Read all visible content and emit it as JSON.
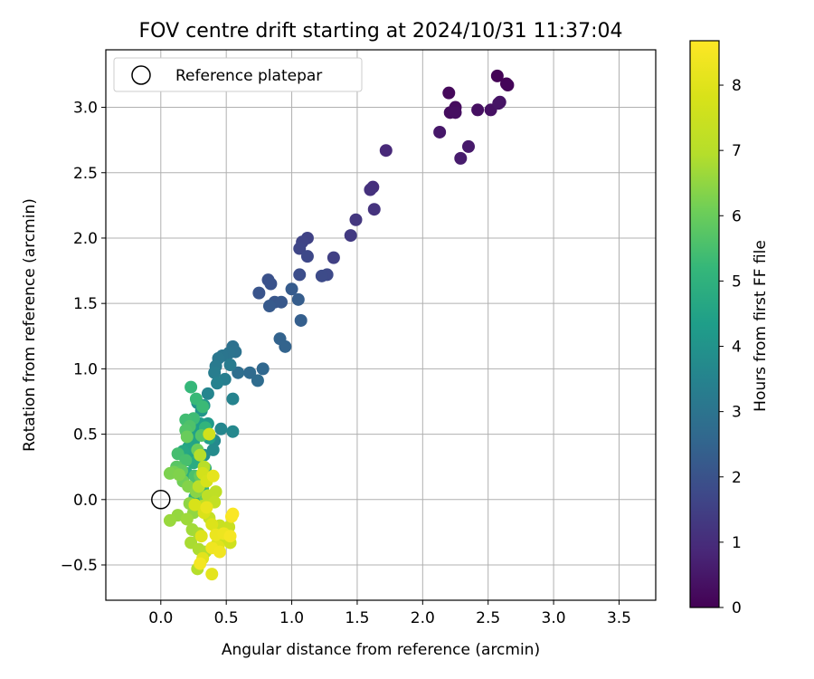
{
  "chart_data": {
    "type": "scatter",
    "title": "FOV centre drift starting at 2024/10/31 11:37:04",
    "xlabel": "Angular distance from reference (arcmin)",
    "ylabel": "Rotation from reference (arcmin)",
    "xlim": [
      -0.42,
      3.78
    ],
    "ylim": [
      -0.77,
      3.44
    ],
    "xticks": [
      "0.0",
      "0.5",
      "1.0",
      "1.5",
      "2.0",
      "2.5",
      "3.0",
      "3.5"
    ],
    "yticks": [
      "−0.5",
      "0.0",
      "0.5",
      "1.0",
      "1.5",
      "2.0",
      "2.5",
      "3.0"
    ],
    "grid": true,
    "legend": {
      "position": "top-left",
      "entries": [
        "Reference platepar"
      ]
    },
    "reference_point": {
      "x": 0.0,
      "y": 0.0
    },
    "colorbar": {
      "label": "Hours from first FF file",
      "colormap": "viridis",
      "range": [
        0,
        8.68
      ],
      "ticks": [
        "0",
        "1",
        "2",
        "3",
        "4",
        "5",
        "6",
        "7",
        "8"
      ]
    },
    "points": [
      [
        2.57,
        3.24,
        0.05
      ],
      [
        2.64,
        3.18,
        0.08
      ],
      [
        2.65,
        3.17,
        0.1
      ],
      [
        2.2,
        3.11,
        0.18
      ],
      [
        2.25,
        3.0,
        0.22
      ],
      [
        2.21,
        2.96,
        0.25
      ],
      [
        2.25,
        2.96,
        0.28
      ],
      [
        2.42,
        2.98,
        0.32
      ],
      [
        2.52,
        2.98,
        0.35
      ],
      [
        2.59,
        3.04,
        0.4
      ],
      [
        2.58,
        3.03,
        0.42
      ],
      [
        2.13,
        2.81,
        0.5
      ],
      [
        2.35,
        2.7,
        0.55
      ],
      [
        2.29,
        2.61,
        0.6
      ],
      [
        1.72,
        2.67,
        0.9
      ],
      [
        1.62,
        2.39,
        1.05
      ],
      [
        1.6,
        2.37,
        1.1
      ],
      [
        1.63,
        2.22,
        1.15
      ],
      [
        1.49,
        2.14,
        1.25
      ],
      [
        1.45,
        2.02,
        1.35
      ],
      [
        1.32,
        1.85,
        1.5
      ],
      [
        1.12,
        2.0,
        1.55
      ],
      [
        1.08,
        1.97,
        1.6
      ],
      [
        1.06,
        1.92,
        1.65
      ],
      [
        1.12,
        1.86,
        1.7
      ],
      [
        1.27,
        1.72,
        1.75
      ],
      [
        1.23,
        1.71,
        1.8
      ],
      [
        1.06,
        1.72,
        1.85
      ],
      [
        0.82,
        1.68,
        1.95
      ],
      [
        0.84,
        1.65,
        2.0
      ],
      [
        0.75,
        1.58,
        2.05
      ],
      [
        0.87,
        1.51,
        2.1
      ],
      [
        0.92,
        1.51,
        2.15
      ],
      [
        0.83,
        1.48,
        2.2
      ],
      [
        1.0,
        1.61,
        2.25
      ],
      [
        1.05,
        1.53,
        2.3
      ],
      [
        1.07,
        1.37,
        2.35
      ],
      [
        0.91,
        1.23,
        2.45
      ],
      [
        0.95,
        1.17,
        2.5
      ],
      [
        0.78,
        1.0,
        2.6
      ],
      [
        0.68,
        0.97,
        2.7
      ],
      [
        0.74,
        0.91,
        2.75
      ],
      [
        0.59,
        0.97,
        2.8
      ],
      [
        0.55,
        1.17,
        2.9
      ],
      [
        0.57,
        1.13,
        2.95
      ],
      [
        0.52,
        1.12,
        3.0
      ],
      [
        0.47,
        1.1,
        3.05
      ],
      [
        0.44,
        1.08,
        3.1
      ],
      [
        0.42,
        1.02,
        3.2
      ],
      [
        0.53,
        1.03,
        3.25
      ],
      [
        0.41,
        0.97,
        3.3
      ],
      [
        0.49,
        0.92,
        3.35
      ],
      [
        0.43,
        0.89,
        3.45
      ],
      [
        0.55,
        0.77,
        3.5
      ],
      [
        0.36,
        0.81,
        3.55
      ],
      [
        0.46,
        0.54,
        3.6
      ],
      [
        0.55,
        0.52,
        3.65
      ],
      [
        0.41,
        0.45,
        3.7
      ],
      [
        0.4,
        0.38,
        3.75
      ],
      [
        0.33,
        0.34,
        3.85
      ],
      [
        0.3,
        0.31,
        3.9
      ],
      [
        0.28,
        0.74,
        4.0
      ],
      [
        0.33,
        0.72,
        4.05
      ],
      [
        0.31,
        0.68,
        4.1
      ],
      [
        0.36,
        0.58,
        4.2
      ],
      [
        0.3,
        0.58,
        4.3
      ],
      [
        0.26,
        0.55,
        4.35
      ],
      [
        0.37,
        0.47,
        4.4
      ],
      [
        0.22,
        0.5,
        4.45
      ],
      [
        0.25,
        0.44,
        4.5
      ],
      [
        0.21,
        0.4,
        4.55
      ],
      [
        0.24,
        0.35,
        4.6
      ],
      [
        0.17,
        0.37,
        4.65
      ],
      [
        0.3,
        0.33,
        4.7
      ],
      [
        0.34,
        0.24,
        4.75
      ],
      [
        0.25,
        0.28,
        4.8
      ],
      [
        0.2,
        0.2,
        4.85
      ],
      [
        0.28,
        0.14,
        4.9
      ],
      [
        0.32,
        0.08,
        4.95
      ],
      [
        0.26,
        0.02,
        5.0
      ],
      [
        0.34,
        0.55,
        5.1
      ],
      [
        0.23,
        0.86,
        5.2
      ],
      [
        0.27,
        0.77,
        5.25
      ],
      [
        0.32,
        0.71,
        5.3
      ],
      [
        0.25,
        0.62,
        5.35
      ],
      [
        0.19,
        0.61,
        5.4
      ],
      [
        0.13,
        0.35,
        5.45
      ],
      [
        0.19,
        0.3,
        5.5
      ],
      [
        0.26,
        0.18,
        5.55
      ],
      [
        0.22,
        0.56,
        5.6
      ],
      [
        0.19,
        0.53,
        5.65
      ],
      [
        0.31,
        0.49,
        5.7
      ],
      [
        0.12,
        0.25,
        5.75
      ],
      [
        0.16,
        0.22,
        5.85
      ],
      [
        0.3,
        0.18,
        5.9
      ],
      [
        0.34,
        0.02,
        5.95
      ],
      [
        0.2,
        0.48,
        6.0
      ],
      [
        0.28,
        0.38,
        6.05
      ],
      [
        0.17,
        0.14,
        6.1
      ],
      [
        0.1,
        0.21,
        6.15
      ],
      [
        0.07,
        0.2,
        6.25
      ],
      [
        0.14,
        0.19,
        6.3
      ],
      [
        0.21,
        0.1,
        6.35
      ],
      [
        0.27,
        0.06,
        6.4
      ],
      [
        0.22,
        -0.03,
        6.45
      ],
      [
        0.25,
        -0.1,
        6.5
      ],
      [
        0.13,
        -0.12,
        6.55
      ],
      [
        0.07,
        -0.16,
        6.6
      ],
      [
        0.2,
        -0.15,
        6.65
      ],
      [
        0.24,
        -0.23,
        6.7
      ],
      [
        0.29,
        -0.26,
        6.75
      ],
      [
        0.23,
        -0.33,
        6.8
      ],
      [
        0.29,
        -0.38,
        6.85
      ],
      [
        0.34,
        -0.4,
        6.9
      ],
      [
        0.28,
        -0.53,
        6.95
      ],
      [
        0.3,
        0.34,
        7.0
      ],
      [
        0.33,
        0.25,
        7.05
      ],
      [
        0.29,
        0.1,
        7.1
      ],
      [
        0.36,
        0.03,
        7.15
      ],
      [
        0.42,
        0.06,
        7.2
      ],
      [
        0.32,
        -0.05,
        7.25
      ],
      [
        0.41,
        -0.02,
        7.3
      ],
      [
        0.37,
        -0.14,
        7.35
      ],
      [
        0.45,
        -0.2,
        7.4
      ],
      [
        0.52,
        -0.21,
        7.45
      ],
      [
        0.47,
        -0.3,
        7.5
      ],
      [
        0.43,
        -0.34,
        7.55
      ],
      [
        0.53,
        -0.33,
        7.6
      ],
      [
        0.37,
        0.5,
        7.65
      ],
      [
        0.32,
        0.2,
        7.7
      ],
      [
        0.35,
        0.14,
        7.75
      ],
      [
        0.26,
        -0.04,
        7.8
      ],
      [
        0.33,
        -0.1,
        7.85
      ],
      [
        0.39,
        -0.19,
        7.9
      ],
      [
        0.31,
        -0.28,
        7.95
      ],
      [
        0.44,
        -0.36,
        8.0
      ],
      [
        0.32,
        -0.45,
        8.05
      ],
      [
        0.39,
        -0.57,
        8.1
      ],
      [
        0.4,
        0.18,
        8.15
      ],
      [
        0.35,
        -0.06,
        8.2
      ],
      [
        0.42,
        -0.27,
        8.25
      ],
      [
        0.48,
        -0.26,
        8.3
      ],
      [
        0.39,
        -0.37,
        8.35
      ],
      [
        0.45,
        -0.4,
        8.4
      ],
      [
        0.3,
        -0.49,
        8.45
      ],
      [
        0.53,
        -0.28,
        8.5
      ],
      [
        0.54,
        -0.13,
        8.55
      ],
      [
        0.55,
        -0.11,
        8.6
      ]
    ]
  }
}
